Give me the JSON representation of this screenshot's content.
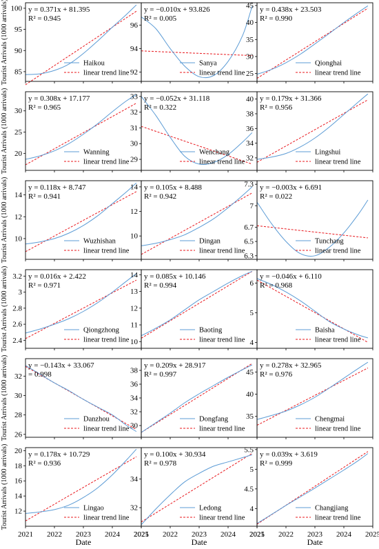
{
  "figure": {
    "ylabel": "Tourist Arrivals (1000 arrivals)",
    "xlabel": "Date",
    "xticks": [
      "2021",
      "2022",
      "2023",
      "2024",
      "2025"
    ],
    "trend_label": "linear trend line"
  },
  "colors": {
    "actual": "#5b9bd5",
    "trend": "#e8141a"
  },
  "chart_data": [
    {
      "type": "line",
      "name": "Haikou",
      "equation": "y = 0.371x + 81.395",
      "r2": "R² = 0.945",
      "xlim": [
        2021,
        2025
      ],
      "ylim": [
        82.7,
        101.3
      ],
      "yticks": [
        85,
        90,
        95,
        100
      ],
      "x": [
        2021,
        2021.5,
        2022,
        2022.5,
        2023,
        2023.5,
        2024,
        2024.5,
        2024.83
      ],
      "actual": [
        84.3,
        84.5,
        85.3,
        86.8,
        89.3,
        92.3,
        95.5,
        98.6,
        100.8
      ],
      "trend": [
        [
          2021,
          81.9
        ],
        [
          2024.83,
          99.3
        ]
      ]
    },
    {
      "type": "line",
      "name": "Sanya",
      "equation": "y = −0.010x + 93.826",
      "r2": "R² = 0.005",
      "xlim": [
        2021,
        2025
      ],
      "ylim": [
        91.2,
        97.9
      ],
      "yticks": [
        92,
        94,
        96
      ],
      "x": [
        2021,
        2021.5,
        2022,
        2022.5,
        2023,
        2023.5,
        2024,
        2024.5,
        2024.83
      ],
      "actual": [
        96.7,
        95.7,
        94.0,
        92.5,
        91.6,
        91.7,
        92.9,
        95.1,
        97.6
      ],
      "trend": [
        [
          2021,
          93.8
        ],
        [
          2024.83,
          93.4
        ]
      ]
    },
    {
      "type": "line",
      "name": "Qionghai",
      "equation": "y = 0.438x + 23.503",
      "r2": "R² = 0.990",
      "xlim": [
        2021,
        2025
      ],
      "ylim": [
        22.7,
        45.8
      ],
      "yticks": [
        25,
        30,
        35,
        40,
        45
      ],
      "x": [
        2021,
        2021.5,
        2022,
        2022.5,
        2023,
        2023.5,
        2024,
        2024.5,
        2024.83
      ],
      "actual": [
        24.8,
        26.2,
        28.2,
        30.7,
        33.7,
        36.8,
        40.0,
        43.0,
        44.9
      ],
      "trend": [
        [
          2021,
          23.6
        ],
        [
          2024.83,
          44.2
        ]
      ]
    },
    {
      "type": "line",
      "name": "Wanning",
      "equation": "y = 0.308x + 17.177",
      "r2": "R² = 0.965",
      "xlim": [
        2021,
        2025
      ],
      "ylim": [
        16.0,
        34.5
      ],
      "yticks": [
        20,
        25,
        30
      ],
      "x": [
        2021,
        2021.5,
        2022,
        2022.5,
        2023,
        2023.5,
        2024,
        2024.5,
        2024.83
      ],
      "actual": [
        18.6,
        19.4,
        20.6,
        22.3,
        24.5,
        27.0,
        29.8,
        32.4,
        33.8
      ],
      "trend": [
        [
          2021,
          17.3
        ],
        [
          2024.83,
          31.8
        ]
      ]
    },
    {
      "type": "line",
      "name": "Wenchang",
      "equation": "y = −0.052x + 31.118",
      "r2": "R² = 0.322",
      "xlim": [
        2021,
        2025
      ],
      "ylim": [
        28.3,
        33.3
      ],
      "yticks": [
        29,
        30,
        31,
        32,
        33
      ],
      "x": [
        2021,
        2021.5,
        2022,
        2022.5,
        2023,
        2023.5,
        2024,
        2024.5,
        2024.83
      ],
      "actual": [
        33.0,
        31.8,
        30.4,
        29.2,
        28.7,
        28.8,
        29.3,
        30.1,
        30.7
      ],
      "trend": [
        [
          2021,
          31.1
        ],
        [
          2024.83,
          28.7
        ]
      ]
    },
    {
      "type": "line",
      "name": "Lingshui",
      "equation": "y = 0.179x + 31.366",
      "r2": "R² = 0.956",
      "xlim": [
        2021,
        2025
      ],
      "ylim": [
        30.3,
        41.0
      ],
      "yticks": [
        32,
        34,
        36,
        38,
        40
      ],
      "x": [
        2021,
        2021.5,
        2022,
        2022.5,
        2023,
        2023.5,
        2024,
        2024.5,
        2024.83
      ],
      "actual": [
        31.8,
        32.1,
        32.6,
        33.5,
        34.7,
        36.2,
        37.9,
        39.6,
        40.7
      ],
      "trend": [
        [
          2021,
          31.4
        ],
        [
          2024.83,
          39.9
        ]
      ]
    },
    {
      "type": "line",
      "name": "Wuzhishan",
      "equation": "y = 0.118x + 8.747",
      "r2": "R² = 0.941",
      "xlim": [
        2021,
        2025
      ],
      "ylim": [
        8.1,
        15.3
      ],
      "yticks": [
        10,
        12,
        14
      ],
      "x": [
        2021,
        2021.5,
        2022,
        2022.5,
        2023,
        2023.5,
        2024,
        2024.5,
        2024.83
      ],
      "actual": [
        9.5,
        9.7,
        10.0,
        10.5,
        11.2,
        12.1,
        13.2,
        14.3,
        15.1
      ],
      "trend": [
        [
          2021,
          8.8
        ],
        [
          2024.83,
          14.3
        ]
      ]
    },
    {
      "type": "line",
      "name": "Dingan",
      "equation": "y = 0.105x + 8.488",
      "r2": "R² = 0.942",
      "xlim": [
        2021,
        2025
      ],
      "ylim": [
        8.1,
        14.5
      ],
      "yticks": [
        10,
        12,
        14
      ],
      "x": [
        2021,
        2021.5,
        2022,
        2022.5,
        2023,
        2023.5,
        2024,
        2024.5,
        2024.83
      ],
      "actual": [
        9.2,
        9.4,
        9.7,
        10.1,
        10.7,
        11.4,
        12.3,
        13.3,
        14.0
      ],
      "trend": [
        [
          2021,
          8.5
        ],
        [
          2024.83,
          13.5
        ]
      ]
    },
    {
      "type": "line",
      "name": "Tunchang",
      "equation": "y = −0.003x + 6.691",
      "r2": "R² = 0.022",
      "xlim": [
        2021,
        2025
      ],
      "ylim": [
        6.25,
        7.35
      ],
      "yticks": [
        6.3,
        6.5,
        6.7,
        7.0,
        7.3
      ],
      "x": [
        2021,
        2021.5,
        2022,
        2022.5,
        2023,
        2023.5,
        2024,
        2024.5,
        2024.83
      ],
      "actual": [
        7.05,
        6.75,
        6.5,
        6.33,
        6.3,
        6.42,
        6.62,
        6.88,
        7.08
      ],
      "trend": [
        [
          2021,
          6.72
        ],
        [
          2024.83,
          6.55
        ]
      ]
    },
    {
      "type": "line",
      "name": "Qiongzhong",
      "equation": "y = 0.016x + 2.422",
      "r2": "R² = 0.971",
      "xlim": [
        2021,
        2025
      ],
      "ylim": [
        2.3,
        3.28
      ],
      "yticks": [
        2.4,
        2.6,
        2.8,
        3.0,
        3.2
      ],
      "x": [
        2021,
        2021.5,
        2022,
        2022.5,
        2023,
        2023.5,
        2024,
        2024.5,
        2024.83
      ],
      "actual": [
        2.49,
        2.54,
        2.6,
        2.67,
        2.76,
        2.87,
        3.0,
        3.14,
        3.23
      ],
      "trend": [
        [
          2021,
          2.42
        ],
        [
          2024.83,
          3.15
        ]
      ]
    },
    {
      "type": "line",
      "name": "Baoting",
      "equation": "y = 0.085x + 10.146",
      "r2": "R² = 0.994",
      "xlim": [
        2021,
        2025
      ],
      "ylim": [
        9.6,
        14.3
      ],
      "yticks": [
        10,
        11,
        12,
        13,
        14
      ],
      "x": [
        2021,
        2021.5,
        2022,
        2022.5,
        2023,
        2023.5,
        2024,
        2024.5,
        2024.83
      ],
      "actual": [
        10.35,
        10.8,
        11.3,
        11.9,
        12.5,
        13.0,
        13.5,
        13.95,
        14.2
      ],
      "trend": [
        [
          2021,
          10.2
        ],
        [
          2024.83,
          14.2
        ]
      ]
    },
    {
      "type": "line",
      "name": "Baisha",
      "equation": "y = −0.046x + 6.110",
      "r2": "R² = 0.968",
      "xlim": [
        2021,
        2025
      ],
      "ylim": [
        3.8,
        6.45
      ],
      "yticks": [
        4,
        5,
        6
      ],
      "x": [
        2021,
        2021.5,
        2022,
        2022.5,
        2023,
        2023.5,
        2024,
        2024.5,
        2024.83
      ],
      "actual": [
        6.15,
        5.95,
        5.7,
        5.4,
        5.05,
        4.7,
        4.45,
        4.25,
        4.15
      ],
      "trend": [
        [
          2021,
          6.1
        ],
        [
          2024.83,
          4.0
        ]
      ]
    },
    {
      "type": "line",
      "name": "Danzhou",
      "equation": "y = −0.143x + 33.067",
      "r2": "= 0.998",
      "xlim": [
        2021,
        2025
      ],
      "ylim": [
        25.7,
        33.8
      ],
      "yticks": [
        26,
        28,
        30,
        32
      ],
      "x": [
        2021,
        2021.5,
        2022,
        2022.5,
        2023,
        2023.5,
        2024,
        2024.5,
        2024.83
      ],
      "actual": [
        33.1,
        32.2,
        31.3,
        30.5,
        29.6,
        28.8,
        28.0,
        26.9,
        26.3
      ],
      "trend": [
        [
          2021,
          33.0
        ],
        [
          2024.83,
          26.5
        ]
      ]
    },
    {
      "type": "line",
      "name": "Dongfang",
      "equation": "y = 0.209x + 28.917",
      "r2": "R² = 0.997",
      "xlim": [
        2021,
        2025
      ],
      "ylim": [
        28.3,
        39.7
      ],
      "yticks": [
        30,
        32,
        34,
        36,
        38
      ],
      "x": [
        2021,
        2021.5,
        2022,
        2022.5,
        2023,
        2023.5,
        2024,
        2024.5,
        2024.83
      ],
      "actual": [
        29.0,
        30.4,
        31.8,
        33.3,
        34.6,
        35.8,
        37.0,
        38.1,
        38.8
      ],
      "trend": [
        [
          2021,
          29.0
        ],
        [
          2024.83,
          39.0
        ]
      ]
    },
    {
      "type": "line",
      "name": "Chengmai",
      "equation": "y = 0.278x + 32.965",
      "r2": "R² = 0.976",
      "xlim": [
        2021,
        2025
      ],
      "ylim": [
        30.3,
        48.0
      ],
      "yticks": [
        35,
        40,
        45
      ],
      "x": [
        2021,
        2021.5,
        2022,
        2022.5,
        2023,
        2023.5,
        2024,
        2024.5,
        2024.83
      ],
      "actual": [
        34.3,
        35.2,
        36.2,
        37.6,
        39.3,
        41.4,
        43.6,
        45.8,
        47.2
      ],
      "trend": [
        [
          2021,
          33.0
        ],
        [
          2024.83,
          45.9
        ]
      ]
    },
    {
      "type": "line",
      "name": "Lingao",
      "equation": "y = 0.178x + 10.729",
      "r2": "R² = 0.936",
      "xlim": [
        2021,
        2025
      ],
      "ylim": [
        10.0,
        20.4
      ],
      "yticks": [
        12,
        14,
        16,
        18,
        20
      ],
      "x": [
        2021,
        2021.5,
        2022,
        2022.5,
        2023,
        2023.5,
        2024,
        2024.5,
        2024.83
      ],
      "actual": [
        11.7,
        11.9,
        12.2,
        12.8,
        13.8,
        15.1,
        16.8,
        18.8,
        20.2
      ],
      "trend": [
        [
          2021,
          10.7
        ],
        [
          2024.83,
          19.2
        ]
      ]
    },
    {
      "type": "line",
      "name": "Ledong",
      "equation": "y = 0.100x + 30.934",
      "r2": "R² = 0.978",
      "xlim": [
        2021,
        2025
      ],
      "ylim": [
        30.7,
        36.2
      ],
      "yticks": [
        32,
        34
      ],
      "x": [
        2021,
        2021.5,
        2022,
        2022.5,
        2023,
        2023.5,
        2024,
        2024.5,
        2024.83
      ],
      "actual": [
        30.8,
        31.9,
        32.9,
        33.8,
        34.4,
        34.9,
        35.2,
        35.5,
        35.7
      ],
      "trend": [
        [
          2021,
          31.0
        ],
        [
          2024.83,
          35.8
        ]
      ]
    },
    {
      "type": "line",
      "name": "Changjiang",
      "equation": "y = 0.039x + 3.619",
      "r2": "R² = 0.999",
      "xlim": [
        2021,
        2025
      ],
      "ylim": [
        3.55,
        5.55
      ],
      "yticks": [
        4.0,
        4.5,
        5.0,
        5.5
      ],
      "x": [
        2021,
        2021.5,
        2022,
        2022.5,
        2023,
        2023.5,
        2024,
        2024.5,
        2024.83
      ],
      "actual": [
        3.62,
        3.85,
        4.08,
        4.3,
        4.52,
        4.75,
        4.98,
        5.22,
        5.4
      ],
      "trend": [
        [
          2021,
          3.6
        ],
        [
          2024.83,
          5.45
        ]
      ]
    }
  ]
}
